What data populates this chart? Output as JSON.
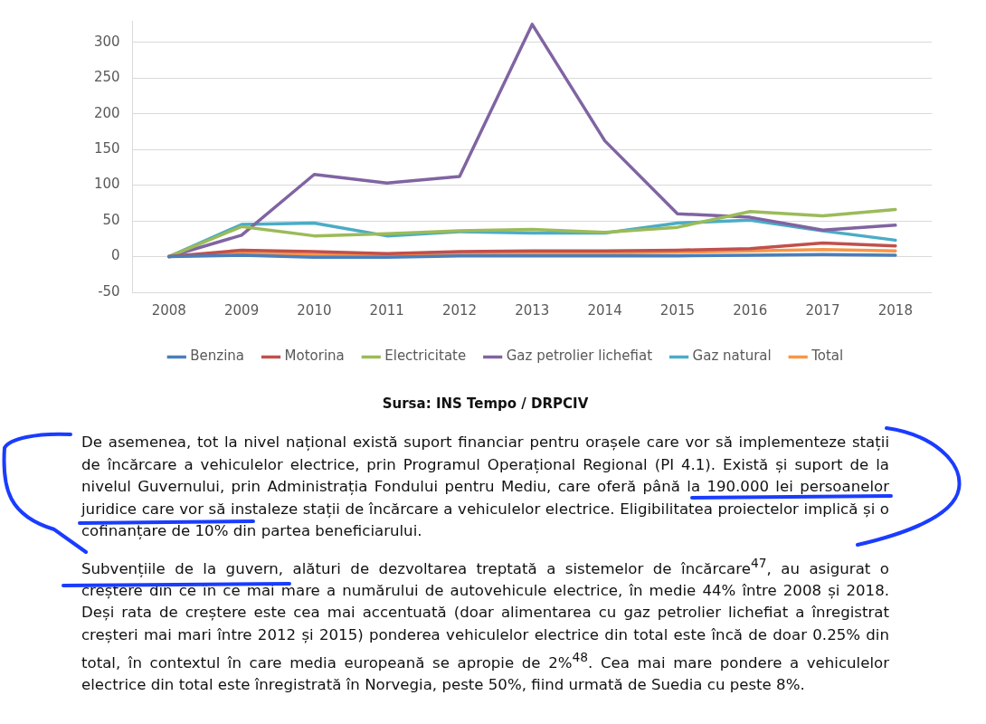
{
  "chart_data": {
    "type": "line",
    "categories": [
      "2008",
      "2009",
      "2010",
      "2011",
      "2012",
      "2013",
      "2014",
      "2015",
      "2016",
      "2017",
      "2018"
    ],
    "series": [
      {
        "name": "Benzina",
        "color": "#4a7ebb",
        "values": [
          0,
          2,
          -1,
          -1,
          1,
          1,
          1,
          1,
          2,
          3,
          2
        ]
      },
      {
        "name": "Motorina",
        "color": "#c0504d",
        "values": [
          0,
          9,
          7,
          4,
          7,
          8,
          8,
          9,
          11,
          19,
          15
        ]
      },
      {
        "name": "Electricitate",
        "color": "#9bbb59",
        "values": [
          0,
          42,
          29,
          32,
          36,
          38,
          34,
          41,
          63,
          57,
          66
        ]
      },
      {
        "name": "Gaz petrolier lichefiat",
        "color": "#8064a2",
        "values": [
          0,
          30,
          115,
          103,
          112,
          325,
          162,
          60,
          55,
          37,
          44
        ]
      },
      {
        "name": "Gaz natural",
        "color": "#4bacc6",
        "values": [
          0,
          45,
          47,
          29,
          35,
          33,
          33,
          47,
          51,
          36,
          23
        ]
      },
      {
        "name": "Total",
        "color": "#f79646",
        "values": [
          0,
          5,
          3,
          1,
          4,
          5,
          5,
          6,
          8,
          10,
          8
        ]
      }
    ],
    "ylim": [
      -50,
      330
    ],
    "yticks": [
      -50,
      0,
      50,
      100,
      150,
      200,
      250,
      300
    ],
    "grid": "y",
    "legend": "bottom",
    "marker": "none",
    "line_style": "solid",
    "annotations": [
      "Sursa: INS Tempo / DRPCIV",
      "De asemenea, tot la nivel național există suport financiar pentru orașele care vor să implementeze stații de încărcare a vehiculelor electrice, prin Programul Operațional Regional (PI 4.1). Există și suport de la nivelul Guvernului, prin Administrația Fondului pentru Mediu, care oferă până la 190.000 lei persoanelor juridice care vor să instaleze stații de încărcare a vehiculelor electrice. Eligibilitatea proiectelor implică și o cofinanțare de 10% din partea beneficiarului.",
      "Subvențiile de la guvern, alături de dezvoltarea treptată a sistemelor de încărcare$^{47}$, au asigurat o creștere din ce în ce mai mare a numărului de autovehicule electrice, în medie 44% între 2008 și 2018. Deși rata de creștere este cea mai accentuată (doar alimentarea cu gaz petrolier lichefiat a înregistrat creșteri mai mari între 2012 și 2015) ponderea vehiculelor electrice din total este încă de doar 0.25% din total, în contextul în care media europeană se apropie de 2%$^{48}$. Cea mai mare pondere a vehiculelor electrice din total este înregistrată în Norvegia, peste 50%, fiind urmată de Suedia cu peste 8%."
    ]
  }
}
